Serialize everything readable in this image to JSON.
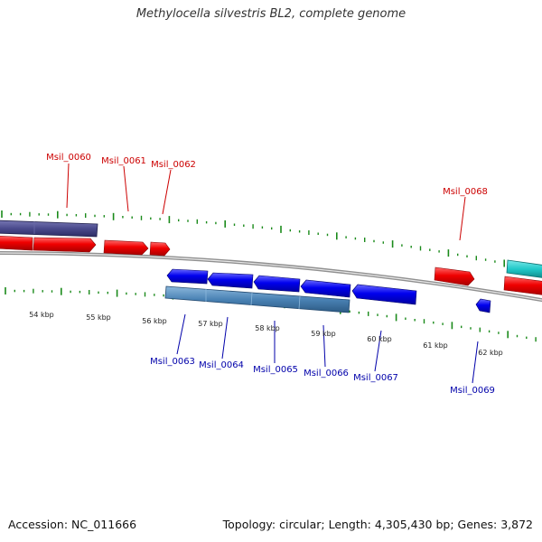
{
  "title": "Methylocella silvestris BL2, complete genome",
  "accession": "Accession: NC_011666",
  "summary": "Topology: circular; Length: 4,305,430 bp; Genes: 3,872",
  "colors": {
    "forward_gene": "#ff0000",
    "reverse_gene": "#0000ff",
    "forward_label": "#cc0000",
    "reverse_label": "#0000aa",
    "rna_purple": "#4a4a8c",
    "rna_steelblue": "#4a82b4",
    "feature_cyan": "#20c8c8",
    "ticks": "#1a8a1a",
    "backbone": "#808080"
  },
  "scale_labels": [
    "54 kbp",
    "55 kbp",
    "56 kbp",
    "57 kbp",
    "58 kbp",
    "59 kbp",
    "60 kbp",
    "61 kbp",
    "62 kbp"
  ],
  "forward_genes": [
    {
      "label": "Msil_0060"
    },
    {
      "label": "Msil_0061"
    },
    {
      "label": "Msil_0062"
    },
    {
      "label": "Msil_0068"
    }
  ],
  "reverse_genes": [
    {
      "label": "Msil_0063"
    },
    {
      "label": "Msil_0064"
    },
    {
      "label": "Msil_0065"
    },
    {
      "label": "Msil_0066"
    },
    {
      "label": "Msil_0067"
    },
    {
      "label": "Msil_0069"
    }
  ]
}
